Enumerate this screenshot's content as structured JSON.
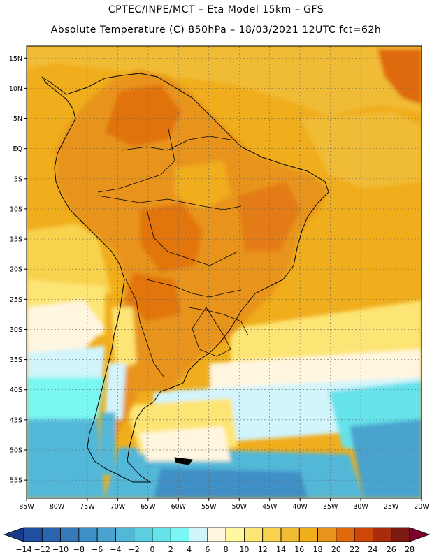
{
  "header": {
    "line1": "CPTEC/INPE/MCT –  Eta Model 15km – GFS",
    "line2": "Absolute Temperature (C) 850hPa – 18/03/2021 12UTC fct=62h"
  },
  "map": {
    "lon_range": [
      -85,
      -20
    ],
    "lat_range": [
      -58,
      17
    ],
    "lat_ticks": [
      "15N",
      "10N",
      "5N",
      "EQ",
      "5S",
      "10S",
      "15S",
      "20S",
      "25S",
      "30S",
      "35S",
      "40S",
      "45S",
      "50S",
      "55S"
    ],
    "lat_values": [
      15,
      10,
      5,
      0,
      -5,
      -10,
      -15,
      -20,
      -25,
      -30,
      -35,
      -40,
      -45,
      -50,
      -55
    ],
    "lon_ticks": [
      "85W",
      "80W",
      "75W",
      "70W",
      "65W",
      "60W",
      "55W",
      "50W",
      "45W",
      "40W",
      "35W",
      "30W",
      "25W",
      "20W"
    ],
    "lon_values": [
      -85,
      -80,
      -75,
      -70,
      -65,
      -60,
      -55,
      -50,
      -45,
      -40,
      -35,
      -30,
      -25,
      -20
    ]
  },
  "colorbar": {
    "labels": [
      "-14",
      "-12",
      "-10",
      "-8",
      "-6",
      "-4",
      "-2",
      "0",
      "2",
      "4",
      "6",
      "8",
      "10",
      "12",
      "14",
      "16",
      "18",
      "20",
      "22",
      "24",
      "26",
      "28"
    ],
    "colors": [
      "#1b3a8a",
      "#1f4f9e",
      "#2a63ae",
      "#3579b9",
      "#3f8fc6",
      "#4aa3cf",
      "#52b8d8",
      "#5dcde2",
      "#66e2ea",
      "#7af6f3",
      "#d2f4fb",
      "#fff6e0",
      "#fff7a0",
      "#fde575",
      "#f8d24e",
      "#f1bc35",
      "#f0ad1c",
      "#e8941c",
      "#df6a0b",
      "#cc4709",
      "#a82d0b",
      "#7a1a12",
      "#7d0031"
    ]
  },
  "legend": {
    "colors": {
      "land_deep": "#e8941c",
      "land_mid": "#f0ad1c",
      "land_hot": "#df6a0b",
      "ocean_warm": "#f0ad1c",
      "ocean_mid": "#f1bc35",
      "ocean_light": "#f8d24e",
      "pale_yellow": "#fde575",
      "cream": "#fff6e0",
      "pale_cyan": "#d2f4fb",
      "cyan": "#7af6f3",
      "cyan2": "#66e2ea",
      "blue1": "#52b8d8",
      "blue2": "#4aa3cf",
      "blue3": "#3f8fc6"
    }
  }
}
